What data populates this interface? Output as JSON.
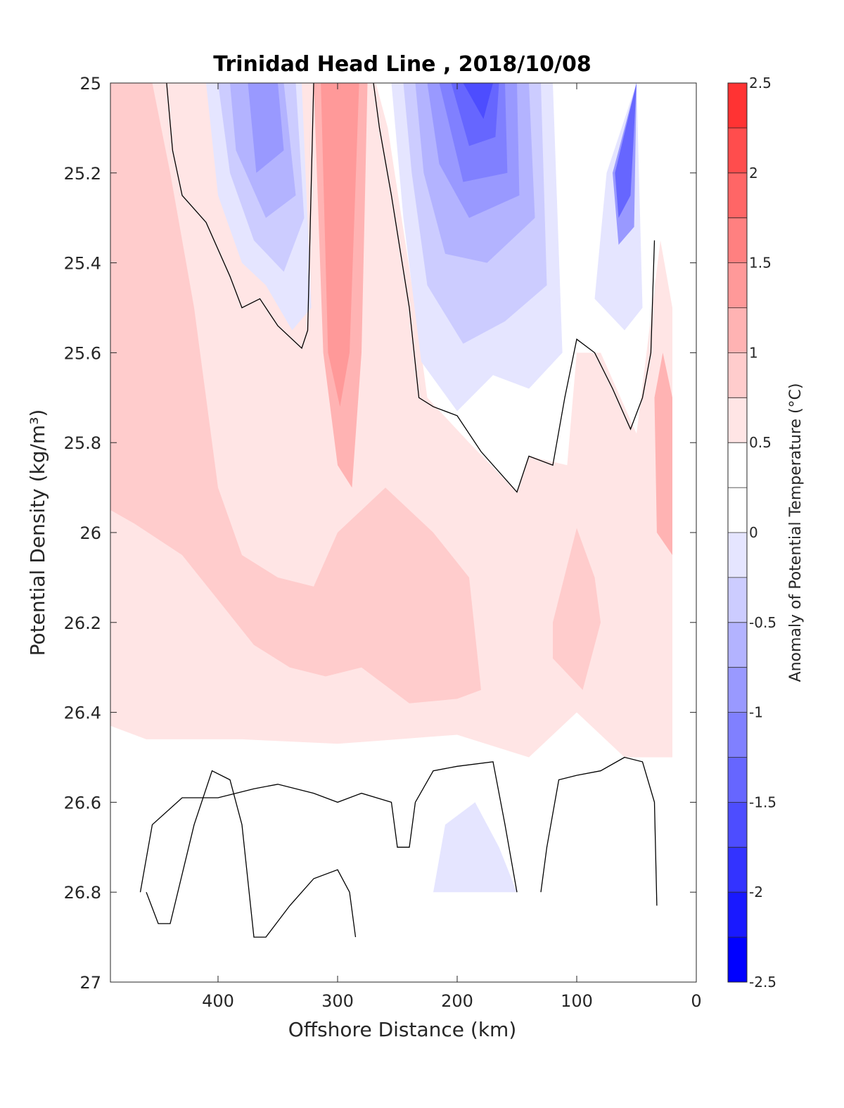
{
  "chart_data": {
    "type": "heatmap",
    "title": "Trinidad Head Line , 2018/10/08",
    "xlabel": "Offshore Distance (km)",
    "ylabel": "Potential Density (kg/m³)",
    "colorbar_label": "Anomaly of Potential Temperature (°C)",
    "xlim": [
      490,
      0
    ],
    "ylim": [
      25,
      27
    ],
    "x_ticks": [
      400,
      300,
      200,
      100,
      0
    ],
    "y_ticks": [
      25,
      25.2,
      25.4,
      25.6,
      25.8,
      26,
      26.2,
      26.4,
      26.6,
      26.8,
      27
    ],
    "x_tick_labels": [
      "400",
      "300",
      "200",
      "100",
      "0"
    ],
    "y_tick_labels": [
      "25",
      "25.2",
      "25.4",
      "25.6",
      "25.8",
      "26",
      "26.2",
      "26.4",
      "26.6",
      "26.8",
      "27"
    ],
    "colorbar": {
      "range": [
        -2.5,
        2.5
      ],
      "step": 0.25,
      "ticks": [
        2.5,
        2,
        1.5,
        1,
        0.5,
        0,
        -0.5,
        -1,
        -1.5,
        -2,
        -2.5
      ],
      "tick_labels": [
        "2.5",
        "2",
        "1.5",
        "1",
        "0.5",
        "0",
        "-0.5",
        "-1",
        "-1.5",
        "-2",
        "-2.5"
      ],
      "colors_low_to_high": [
        "#0000ff",
        "#1919ff",
        "#3333ff",
        "#4d4dff",
        "#6666ff",
        "#8080ff",
        "#9999ff",
        "#b3b3ff",
        "#ccccff",
        "#e5e5ff",
        "#ffffff",
        "#ffffff",
        "#ffe5e5",
        "#ffcccc",
        "#ffb3b3",
        "#ff9999",
        "#ff8080",
        "#ff6666",
        "#ff4d4d",
        "#ff3333",
        "#ff1919"
      ]
    },
    "fields": [
      {
        "level": 0.375,
        "color": "#ffe5e5",
        "points": [
          [
            490,
            25.0
          ],
          [
            268,
            25.0
          ],
          [
            258,
            25.1
          ],
          [
            235,
            25.5
          ],
          [
            225,
            25.7
          ],
          [
            190,
            25.8
          ],
          [
            150,
            25.91
          ],
          [
            140,
            25.83
          ],
          [
            108,
            25.85
          ],
          [
            100,
            25.6
          ],
          [
            80,
            25.6
          ],
          [
            50,
            25.78
          ],
          [
            30,
            25.35
          ],
          [
            20,
            25.5
          ],
          [
            20,
            26.4
          ],
          [
            20,
            26.5
          ],
          [
            60,
            26.5
          ],
          [
            100,
            26.4
          ],
          [
            140,
            26.5
          ],
          [
            200,
            26.45
          ],
          [
            300,
            26.47
          ],
          [
            380,
            26.46
          ],
          [
            460,
            26.46
          ],
          [
            490,
            26.43
          ]
        ]
      },
      {
        "level": 0.625,
        "color": "#ffcccc",
        "points": [
          [
            490,
            25.0
          ],
          [
            455,
            25.0
          ],
          [
            440,
            25.2
          ],
          [
            420,
            25.5
          ],
          [
            400,
            25.9
          ],
          [
            380,
            26.05
          ],
          [
            350,
            26.1
          ],
          [
            320,
            26.12
          ],
          [
            300,
            26.0
          ],
          [
            260,
            25.9
          ],
          [
            220,
            26.0
          ],
          [
            190,
            26.1
          ],
          [
            180,
            26.35
          ],
          [
            200,
            26.37
          ],
          [
            240,
            26.38
          ],
          [
            280,
            26.3
          ],
          [
            310,
            26.32
          ],
          [
            340,
            26.3
          ],
          [
            370,
            26.25
          ],
          [
            400,
            26.15
          ],
          [
            430,
            26.05
          ],
          [
            470,
            25.98
          ],
          [
            490,
            25.95
          ]
        ]
      },
      {
        "level": 0.625,
        "color": "#ffcccc",
        "points": [
          [
            120,
            26.2
          ],
          [
            100,
            25.99
          ],
          [
            85,
            26.1
          ],
          [
            80,
            26.2
          ],
          [
            95,
            26.35
          ],
          [
            120,
            26.28
          ]
        ]
      },
      {
        "level": 0.875,
        "color": "#ffb3b3",
        "points": [
          [
            320,
            25.0
          ],
          [
            275,
            25.0
          ],
          [
            280,
            25.6
          ],
          [
            288,
            25.9
          ],
          [
            300,
            25.85
          ],
          [
            312,
            25.6
          ]
        ]
      },
      {
        "level": 0.875,
        "color": "#ffb3b3",
        "points": [
          [
            20,
            25.7
          ],
          [
            28,
            25.6
          ],
          [
            35,
            25.7
          ],
          [
            33,
            26.0
          ],
          [
            20,
            26.05
          ]
        ]
      },
      {
        "level": 1.125,
        "color": "#ff9999",
        "points": [
          [
            314,
            25.0
          ],
          [
            282,
            25.0
          ],
          [
            290,
            25.6
          ],
          [
            298,
            25.72
          ],
          [
            308,
            25.6
          ]
        ]
      },
      {
        "level": -0.375,
        "color": "#e5e5ff",
        "points": [
          [
            410,
            25.0
          ],
          [
            330,
            25.0
          ],
          [
            322,
            25.5
          ],
          [
            338,
            25.55
          ],
          [
            360,
            25.45
          ],
          [
            380,
            25.4
          ],
          [
            400,
            25.25
          ]
        ]
      },
      {
        "level": -0.375,
        "color": "#e5e5ff",
        "points": [
          [
            255,
            25.0
          ],
          [
            120,
            25.0
          ],
          [
            112,
            25.6
          ],
          [
            140,
            25.68
          ],
          [
            170,
            25.65
          ],
          [
            200,
            25.73
          ],
          [
            230,
            25.62
          ],
          [
            245,
            25.3
          ]
        ]
      },
      {
        "level": -0.375,
        "color": "#e5e5ff",
        "points": [
          [
            75,
            25.2
          ],
          [
            50,
            25.0
          ],
          [
            45,
            25.5
          ],
          [
            60,
            25.55
          ],
          [
            85,
            25.48
          ]
        ]
      },
      {
        "level": -0.375,
        "color": "#e5e5ff",
        "points": [
          [
            220,
            26.8
          ],
          [
            150,
            26.8
          ],
          [
            165,
            26.7
          ],
          [
            185,
            26.6
          ],
          [
            210,
            26.65
          ]
        ]
      },
      {
        "level": -0.625,
        "color": "#ccccff",
        "points": [
          [
            400,
            25.0
          ],
          [
            335,
            25.0
          ],
          [
            328,
            25.3
          ],
          [
            345,
            25.42
          ],
          [
            370,
            25.35
          ],
          [
            390,
            25.2
          ]
        ]
      },
      {
        "level": -0.625,
        "color": "#ccccff",
        "points": [
          [
            245,
            25.0
          ],
          [
            130,
            25.0
          ],
          [
            125,
            25.45
          ],
          [
            160,
            25.53
          ],
          [
            195,
            25.58
          ],
          [
            225,
            25.45
          ],
          [
            238,
            25.2
          ]
        ]
      },
      {
        "level": -0.875,
        "color": "#b3b3ff",
        "points": [
          [
            390,
            25.0
          ],
          [
            345,
            25.0
          ],
          [
            335,
            25.25
          ],
          [
            360,
            25.3
          ],
          [
            385,
            25.15
          ]
        ]
      },
      {
        "level": -0.875,
        "color": "#b3b3ff",
        "points": [
          [
            235,
            25.0
          ],
          [
            140,
            25.0
          ],
          [
            135,
            25.3
          ],
          [
            175,
            25.4
          ],
          [
            210,
            25.38
          ],
          [
            228,
            25.2
          ]
        ]
      },
      {
        "level": -1.125,
        "color": "#9999ff",
        "points": [
          [
            375,
            25.0
          ],
          [
            350,
            25.0
          ],
          [
            345,
            25.15
          ],
          [
            368,
            25.2
          ]
        ]
      },
      {
        "level": -1.125,
        "color": "#9999ff",
        "points": [
          [
            225,
            25.0
          ],
          [
            150,
            25.0
          ],
          [
            148,
            25.25
          ],
          [
            190,
            25.3
          ],
          [
            215,
            25.18
          ]
        ]
      },
      {
        "level": -1.125,
        "color": "#9999ff",
        "points": [
          [
            70,
            25.2
          ],
          [
            50,
            25.0
          ],
          [
            52,
            25.32
          ],
          [
            65,
            25.36
          ]
        ]
      },
      {
        "level": -1.375,
        "color": "#8080ff",
        "points": [
          [
            215,
            25.0
          ],
          [
            160,
            25.0
          ],
          [
            158,
            25.2
          ],
          [
            195,
            25.22
          ]
        ]
      },
      {
        "level": -1.625,
        "color": "#6666ff",
        "points": [
          [
            205,
            25.0
          ],
          [
            165,
            25.0
          ],
          [
            168,
            25.12
          ],
          [
            190,
            25.14
          ]
        ]
      },
      {
        "level": -1.625,
        "color": "#6666ff",
        "points": [
          [
            68,
            25.2
          ],
          [
            50,
            25.0
          ],
          [
            55,
            25.25
          ],
          [
            65,
            25.3
          ]
        ]
      },
      {
        "level": -1.875,
        "color": "#4d4dff",
        "points": [
          [
            195,
            25.0
          ],
          [
            170,
            25.0
          ],
          [
            178,
            25.08
          ]
        ]
      }
    ],
    "contours_zero": [
      [
        [
          443,
          25.0
        ],
        [
          438,
          25.15
        ],
        [
          430,
          25.25
        ],
        [
          410,
          25.31
        ],
        [
          390,
          25.43
        ],
        [
          380,
          25.5
        ],
        [
          365,
          25.48
        ],
        [
          350,
          25.54
        ],
        [
          330,
          25.59
        ],
        [
          325,
          25.55
        ],
        [
          320,
          25.0
        ]
      ],
      [
        [
          270,
          25.0
        ],
        [
          265,
          25.1
        ],
        [
          255,
          25.25
        ],
        [
          240,
          25.5
        ],
        [
          232,
          25.7
        ],
        [
          220,
          25.72
        ],
        [
          200,
          25.74
        ],
        [
          180,
          25.82
        ],
        [
          160,
          25.88
        ],
        [
          150,
          25.91
        ],
        [
          140,
          25.83
        ],
        [
          120,
          25.85
        ],
        [
          110,
          25.7
        ],
        [
          100,
          25.57
        ],
        [
          85,
          25.6
        ],
        [
          70,
          25.68
        ],
        [
          55,
          25.77
        ],
        [
          45,
          25.7
        ],
        [
          38,
          25.6
        ],
        [
          35,
          25.35
        ]
      ],
      [
        [
          465,
          26.8
        ],
        [
          455,
          26.65
        ],
        [
          430,
          26.59
        ],
        [
          400,
          26.59
        ],
        [
          370,
          26.57
        ],
        [
          350,
          26.56
        ],
        [
          320,
          26.58
        ],
        [
          300,
          26.6
        ],
        [
          280,
          26.58
        ],
        [
          255,
          26.6
        ],
        [
          250,
          26.7
        ],
        [
          240,
          26.7
        ],
        [
          235,
          26.6
        ],
        [
          220,
          26.53
        ],
        [
          200,
          26.52
        ],
        [
          170,
          26.51
        ],
        [
          160,
          26.65
        ],
        [
          150,
          26.8
        ]
      ],
      [
        [
          460,
          26.8
        ],
        [
          450,
          26.87
        ],
        [
          440,
          26.87
        ],
        [
          420,
          26.65
        ],
        [
          405,
          26.53
        ],
        [
          390,
          26.55
        ],
        [
          380,
          26.65
        ],
        [
          370,
          26.9
        ],
        [
          360,
          26.9
        ],
        [
          340,
          26.83
        ],
        [
          320,
          26.77
        ],
        [
          300,
          26.75
        ],
        [
          290,
          26.8
        ],
        [
          285,
          26.9
        ]
      ],
      [
        [
          130,
          26.8
        ],
        [
          125,
          26.7
        ],
        [
          115,
          26.55
        ],
        [
          100,
          26.54
        ],
        [
          80,
          26.53
        ],
        [
          60,
          26.5
        ],
        [
          45,
          26.51
        ],
        [
          35,
          26.6
        ],
        [
          33,
          26.83
        ]
      ]
    ]
  }
}
